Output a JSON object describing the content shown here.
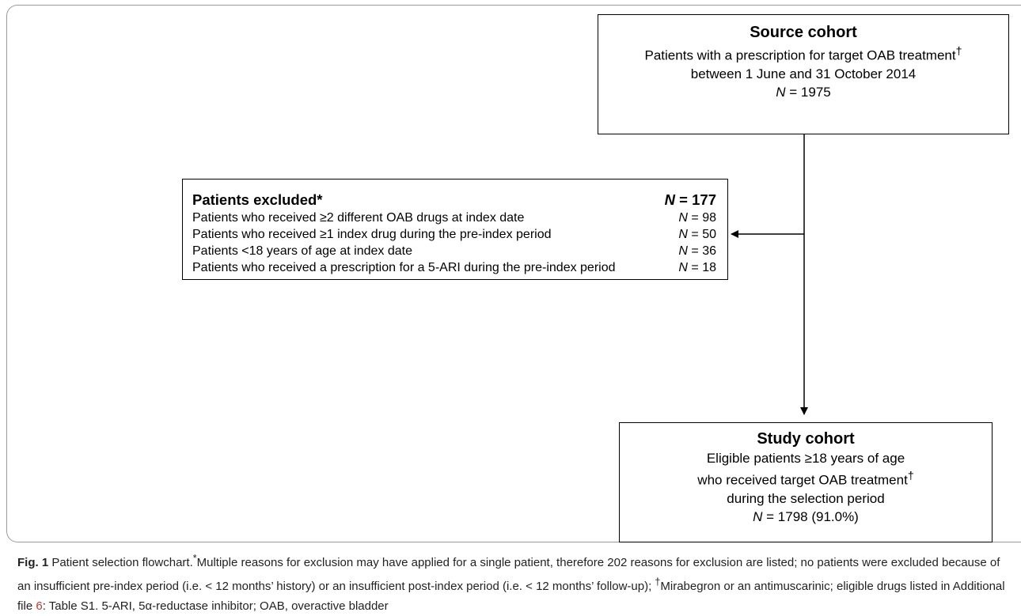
{
  "source_cohort": {
    "title": "Source cohort",
    "line1": "Patients with a prescription for target OAB treatment",
    "line1_mark": "†",
    "line2": "between 1 June and 31 October 2014",
    "n_label": "N",
    "n_value": " = 1975"
  },
  "excluded": {
    "title": "Patients excluded*",
    "total_label": "N",
    "total_value": " = 177",
    "rows": [
      {
        "reason": "Patients who received ≥2 different OAB drugs at index date",
        "n_label": "N",
        "n_value": " = 98"
      },
      {
        "reason": "Patients who received ≥1 index drug during the pre-index period",
        "n_label": "N",
        "n_value": " = 50"
      },
      {
        "reason": "Patients <18 years of age at index date",
        "n_label": "N",
        "n_value": " = 36"
      },
      {
        "reason": "Patients who received a prescription for a 5-ARI during the pre-index period",
        "n_label": "N",
        "n_value": " = 18"
      }
    ]
  },
  "study_cohort": {
    "title": "Study cohort",
    "line1": "Eligible patients ≥18 years of age",
    "line2": "who received target OAB treatment",
    "line2_mark": "†",
    "line3": "during the selection period",
    "n_label": "N",
    "n_value": " = 1798 (91.0%)"
  },
  "caption": {
    "fig_label": "Fig. 1",
    "text_a": " Patient selection flowchart.",
    "mark_a": "*",
    "text_b": "Multiple reasons for exclusion may have applied for a single patient, therefore 202 reasons for exclusion are listed; no patients were excluded because of an insufficient pre-index period (i.e. < 12 months’ history) or an insufficient post-index period (i.e. < 12 months’ follow-up); ",
    "mark_b": "†",
    "text_c": "Mirabegron or an antimuscarinic; eligible drugs listed in Additional file ",
    "link_text": "6",
    "text_d": ": Table S1. 5-ARI, 5α-reductase inhibitor; OAB, overactive bladder"
  }
}
